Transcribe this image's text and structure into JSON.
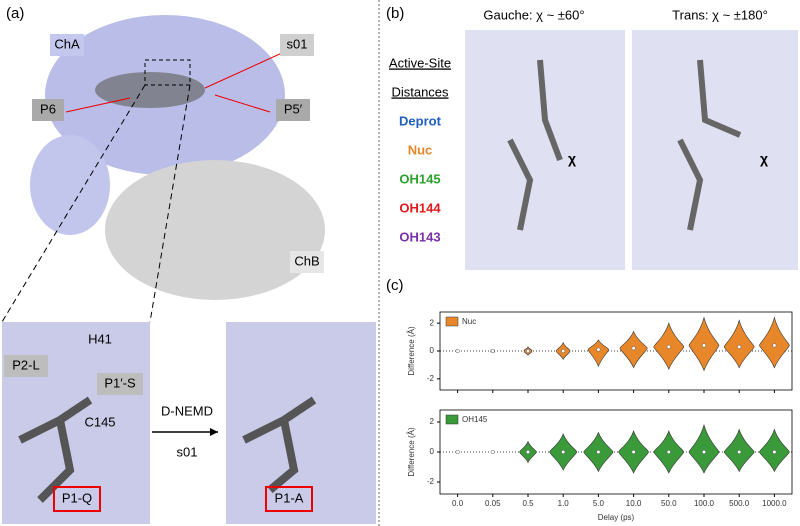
{
  "panel_a": {
    "label": "(a)",
    "chain_a": "ChA",
    "chain_b": "ChB",
    "site": "s01",
    "p6": "P6",
    "p5": "P5′",
    "inset_left": {
      "h41": "H41",
      "p2": "P2-L",
      "p1_prime": "P1′-S",
      "c145": "C145",
      "p1": "P1-Q"
    },
    "arrow": {
      "method": "D-NEMD",
      "site": "s01"
    },
    "inset_right": {
      "p1": "P1-A"
    }
  },
  "panel_b": {
    "label": "(b)",
    "gauche": "Gauche: χ ~ ±60°",
    "trans": "Trans: χ ~ ±180°",
    "chi": "χ",
    "legend_title": [
      "Active-Site",
      "Distances"
    ],
    "distances": [
      {
        "name": "Deprot",
        "color": "#1f5fbf"
      },
      {
        "name": "Nuc",
        "color": "#e8872a"
      },
      {
        "name": "OH145",
        "color": "#2ca02c"
      },
      {
        "name": "OH144",
        "color": "#e0191c"
      },
      {
        "name": "OH143",
        "color": "#7b2fa8"
      }
    ]
  },
  "panel_c": {
    "label": "(c)",
    "xlabel": "Delay (ps)",
    "categories": [
      "0.0",
      "0.05",
      "0.5",
      "1.0",
      "5.0",
      "10.0",
      "50.0",
      "100.0",
      "500.0",
      "1000.0"
    ],
    "charts": [
      {
        "type": "violin",
        "ylabel": "Difference (Å)",
        "ylim": [
          -2.8,
          2.8
        ],
        "yticks": [
          -2,
          0,
          2
        ],
        "series": [
          {
            "name": "Nuc",
            "color": "#e8872a",
            "min": [
              -0.05,
              -0.1,
              -0.3,
              -0.6,
              -1.1,
              -1.2,
              -1.3,
              -1.4,
              -1.2,
              -1.2
            ],
            "max": [
              0.05,
              0.1,
              0.3,
              0.6,
              0.8,
              1.4,
              2.0,
              2.4,
              2.2,
              2.4
            ],
            "median": [
              0,
              0,
              0,
              0,
              0.1,
              0.2,
              0.3,
              0.4,
              0.3,
              0.4
            ]
          }
        ]
      },
      {
        "type": "violin",
        "ylabel": "Difference (Å)",
        "ylim": [
          -2.8,
          2.8
        ],
        "yticks": [
          -2,
          0,
          2
        ],
        "series": [
          {
            "name": "OH145",
            "color": "#3a9a3a",
            "min": [
              -0.05,
              -0.05,
              -0.7,
              -1.2,
              -1.3,
              -1.4,
              -1.4,
              -1.4,
              -1.3,
              -1.3
            ],
            "max": [
              0.05,
              0.05,
              0.7,
              1.2,
              1.3,
              1.4,
              1.4,
              1.8,
              1.5,
              1.5
            ],
            "median": [
              0,
              0,
              0,
              0,
              0,
              0,
              0,
              0,
              0,
              0
            ]
          }
        ]
      }
    ]
  }
}
